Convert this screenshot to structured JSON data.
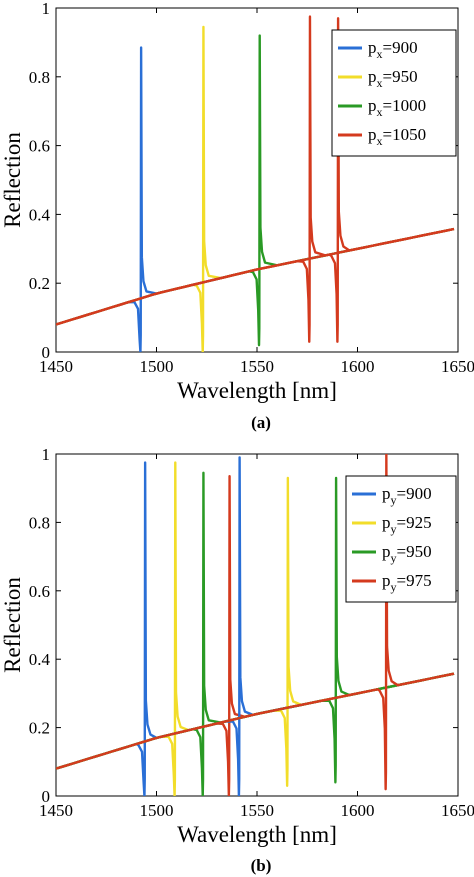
{
  "chart_data": [
    {
      "type": "line",
      "caption": "(a)",
      "xlabel": "Wavelength [nm]",
      "ylabel": "Reflection",
      "xlim": [
        1450,
        1650
      ],
      "ylim": [
        0,
        1
      ],
      "x_ticks": [
        "1450",
        "1500",
        "1550",
        "1600",
        "1650"
      ],
      "y_ticks": [
        "0",
        "0.2",
        "0.4",
        "0.6",
        "0.8",
        "1"
      ],
      "grid": false,
      "legend_position": "top-right",
      "baseline": [
        [
          1450,
          0.08
        ],
        [
          1500,
          0.17
        ],
        [
          1550,
          0.24
        ],
        [
          1600,
          0.3
        ],
        [
          1650,
          0.36
        ]
      ],
      "series": [
        {
          "name": "p",
          "sub": "x",
          "value": "=900",
          "color": "#2a6fd6",
          "resonance": 1492,
          "peak": 0.885,
          "dip": 0.0
        },
        {
          "name": "p",
          "sub": "x",
          "value": "=950",
          "color": "#f2dd2a",
          "resonance": 1523,
          "peak": 0.945,
          "dip": 0.0
        },
        {
          "name": "p",
          "sub": "x",
          "value": "=1000",
          "color": "#2a9a25",
          "resonance": 1551,
          "peak": 0.92,
          "dip": 0.02
        },
        {
          "name": "p",
          "sub": "x",
          "value": "=1050",
          "color": "#d43a1e",
          "resonance": 1576,
          "peak": 0.975,
          "dip": 0.03
        },
        {
          "name": "p",
          "sub": "x",
          "value": "=1050",
          "color": "#d43a1e",
          "resonance": 1590,
          "peak": 0.97,
          "dip": 0.03
        }
      ]
    },
    {
      "type": "line",
      "caption": "(b)",
      "xlabel": "Wavelength [nm]",
      "ylabel": "Reflection",
      "xlim": [
        1450,
        1650
      ],
      "ylim": [
        0,
        1
      ],
      "x_ticks": [
        "1450",
        "1500",
        "1550",
        "1600",
        "1650"
      ],
      "y_ticks": [
        "0",
        "0.2",
        "0.4",
        "0.6",
        "0.8",
        "1"
      ],
      "grid": false,
      "legend_position": "top-right",
      "baseline": [
        [
          1450,
          0.08
        ],
        [
          1500,
          0.17
        ],
        [
          1550,
          0.24
        ],
        [
          1600,
          0.3
        ],
        [
          1650,
          0.36
        ]
      ],
      "series": [
        {
          "name": "p",
          "sub": "y",
          "value": "=900",
          "color": "#2a6fd6",
          "resonance": 1494,
          "peak": 0.975,
          "dip": 0.0
        },
        {
          "name": "p",
          "sub": "y",
          "value": "=925",
          "color": "#f2dd2a",
          "resonance": 1509,
          "peak": 0.975,
          "dip": 0.0
        },
        {
          "name": "p",
          "sub": "y",
          "value": "=950",
          "color": "#2a9a25",
          "resonance": 1523,
          "peak": 0.945,
          "dip": 0.0
        },
        {
          "name": "p",
          "sub": "y",
          "value": "=975",
          "color": "#d43a1e",
          "resonance": 1536,
          "peak": 0.935,
          "dip": 0.0
        },
        {
          "name": "p",
          "sub": "y",
          "value": "=900",
          "color": "#2a6fd6",
          "resonance": 1541,
          "peak": 0.99,
          "dip": 0.0
        },
        {
          "name": "p",
          "sub": "y",
          "value": "=925",
          "color": "#f2dd2a",
          "resonance": 1565,
          "peak": 0.93,
          "dip": 0.03
        },
        {
          "name": "p",
          "sub": "y",
          "value": "=950",
          "color": "#2a9a25",
          "resonance": 1589,
          "peak": 0.93,
          "dip": 0.04
        },
        {
          "name": "p",
          "sub": "y",
          "value": "=975",
          "color": "#d43a1e",
          "resonance": 1614,
          "peak": 1.0,
          "dip": 0.02
        }
      ]
    }
  ]
}
